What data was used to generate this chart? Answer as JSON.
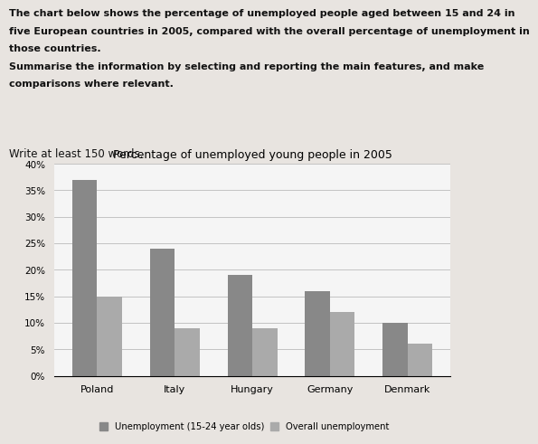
{
  "title": "Percentage of unemployed young people in 2005",
  "countries": [
    "Poland",
    "Italy",
    "Hungary",
    "Germany",
    "Denmark"
  ],
  "youth_unemployment": [
    37,
    24,
    19,
    16,
    10
  ],
  "overall_unemployment": [
    15,
    9,
    9,
    12,
    6
  ],
  "bar_color_youth": "#888888",
  "bar_color_overall": "#aaaaaa",
  "ylim": [
    0,
    40
  ],
  "yticks": [
    0,
    5,
    10,
    15,
    20,
    25,
    30,
    35,
    40
  ],
  "ytick_labels": [
    "0%",
    "5%",
    "10%",
    "15%",
    "20%",
    "25%",
    "30%",
    "35%",
    "40%"
  ],
  "legend_youth": "Unemployment (15-24 year olds)",
  "legend_overall": "Overall unemployment",
  "line1": "The chart below shows the percentage of unemployed people aged between 15 and 24 in",
  "line2": "five European countries in 2005, compared with the overall percentage of unemployment in",
  "line3": "those countries.",
  "line4": "Summarise the information by selecting and reporting the main features, and make",
  "line5": "comparisons where relevant.",
  "footer_text": "Write at least 150 words.",
  "background_color": "#e8e4e0",
  "chart_bg_color": "#f5f5f5",
  "bar_width": 0.32
}
